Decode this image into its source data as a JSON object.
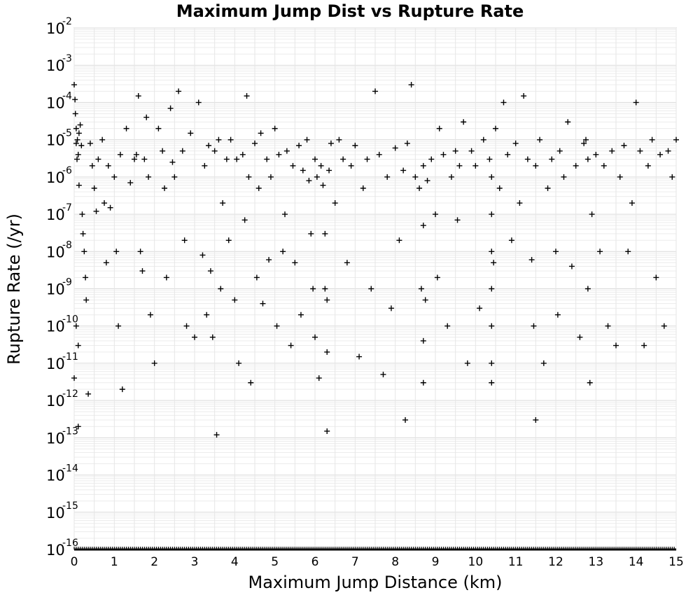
{
  "chart_data": {
    "type": "scatter",
    "title": "Maximum Jump Dist vs Rupture Rate",
    "xlabel": "Maximum Jump Distance (km)",
    "ylabel": "Rupture Rate (/yr)",
    "xlim": [
      0,
      15
    ],
    "ylim": [
      1e-16,
      0.01
    ],
    "y_scale": "log",
    "grid": true,
    "legend": "none",
    "marker": "+",
    "marker_color": "#000000",
    "x_ticks": [
      "0",
      "1",
      "2",
      "3",
      "4",
      "5",
      "6",
      "7",
      "8",
      "9",
      "10",
      "11",
      "12",
      "13",
      "14",
      "15"
    ],
    "y_ticks": [
      {
        "base": "10",
        "exp": "-2"
      },
      {
        "base": "10",
        "exp": "-3"
      },
      {
        "base": "10",
        "exp": "-4"
      },
      {
        "base": "10",
        "exp": "-5"
      },
      {
        "base": "10",
        "exp": "-6"
      },
      {
        "base": "10",
        "exp": "-7"
      },
      {
        "base": "10",
        "exp": "-8"
      },
      {
        "base": "10",
        "exp": "-9"
      },
      {
        "base": "10",
        "exp": "-10"
      },
      {
        "base": "10",
        "exp": "-11"
      },
      {
        "base": "10",
        "exp": "-12"
      },
      {
        "base": "10",
        "exp": "-13"
      },
      {
        "base": "10",
        "exp": "-14"
      },
      {
        "base": "10",
        "exp": "-15"
      },
      {
        "base": "10",
        "exp": "-16"
      }
    ],
    "points": [
      [
        0.0,
        0.0003
      ],
      [
        0.02,
        0.00012
      ],
      [
        0.03,
        5e-05
      ],
      [
        0.05,
        2e-05
      ],
      [
        0.05,
        8e-06
      ],
      [
        0.07,
        3e-06
      ],
      [
        0.08,
        1e-05
      ],
      [
        0.1,
        4e-06
      ],
      [
        0.12,
        1.5e-05
      ],
      [
        0.12,
        6e-07
      ],
      [
        0.15,
        2.5e-05
      ],
      [
        0.18,
        7e-06
      ],
      [
        0.2,
        1e-07
      ],
      [
        0.22,
        3e-08
      ],
      [
        0.25,
        1e-08
      ],
      [
        0.28,
        2e-09
      ],
      [
        0.3,
        5e-10
      ],
      [
        0.05,
        1e-10
      ],
      [
        0.1,
        3e-11
      ],
      [
        0.0,
        4e-12
      ],
      [
        0.1,
        2e-13
      ],
      [
        0.35,
        1.5e-12
      ],
      [
        0.4,
        8e-06
      ],
      [
        0.45,
        2e-06
      ],
      [
        0.5,
        5e-07
      ],
      [
        0.55,
        1.2e-07
      ],
      [
        0.6,
        3e-06
      ],
      [
        0.7,
        1e-05
      ],
      [
        0.75,
        2e-07
      ],
      [
        0.8,
        5e-09
      ],
      [
        0.85,
        2e-06
      ],
      [
        0.9,
        1.5e-07
      ],
      [
        1.0,
        1e-06
      ],
      [
        1.05,
        1e-08
      ],
      [
        1.1,
        1e-10
      ],
      [
        1.15,
        4e-06
      ],
      [
        1.2,
        2e-12
      ],
      [
        1.3,
        2e-05
      ],
      [
        1.4,
        7e-07
      ],
      [
        1.5,
        3e-06
      ],
      [
        1.55,
        4e-06
      ],
      [
        1.6,
        0.00015
      ],
      [
        1.65,
        1e-08
      ],
      [
        1.7,
        3e-09
      ],
      [
        1.75,
        3e-06
      ],
      [
        1.8,
        4e-05
      ],
      [
        1.85,
        1e-06
      ],
      [
        1.9,
        2e-10
      ],
      [
        2.0,
        1e-11
      ],
      [
        2.1,
        2e-05
      ],
      [
        2.2,
        5e-06
      ],
      [
        2.25,
        5e-07
      ],
      [
        2.3,
        2e-09
      ],
      [
        2.4,
        7e-05
      ],
      [
        2.45,
        2.5e-06
      ],
      [
        2.5,
        1e-06
      ],
      [
        2.6,
        0.0002
      ],
      [
        2.7,
        5e-06
      ],
      [
        2.75,
        2e-08
      ],
      [
        2.8,
        1e-10
      ],
      [
        2.9,
        1.5e-05
      ],
      [
        3.0,
        5e-11
      ],
      [
        3.1,
        0.0001
      ],
      [
        3.2,
        8e-09
      ],
      [
        3.25,
        2e-06
      ],
      [
        3.3,
        2e-10
      ],
      [
        3.35,
        7e-06
      ],
      [
        3.4,
        3e-09
      ],
      [
        3.45,
        5e-11
      ],
      [
        3.5,
        5e-06
      ],
      [
        3.55,
        1.2e-13
      ],
      [
        3.6,
        1e-05
      ],
      [
        3.65,
        1e-09
      ],
      [
        3.7,
        2e-07
      ],
      [
        3.8,
        3e-06
      ],
      [
        3.85,
        2e-08
      ],
      [
        3.9,
        1e-05
      ],
      [
        4.0,
        5e-10
      ],
      [
        4.05,
        3e-06
      ],
      [
        4.1,
        1e-11
      ],
      [
        4.2,
        4e-06
      ],
      [
        4.25,
        7e-08
      ],
      [
        4.3,
        0.00015
      ],
      [
        4.35,
        1e-06
      ],
      [
        4.4,
        3e-12
      ],
      [
        4.5,
        8e-06
      ],
      [
        4.55,
        2e-09
      ],
      [
        4.6,
        5e-07
      ],
      [
        4.65,
        1.5e-05
      ],
      [
        4.7,
        4e-10
      ],
      [
        4.8,
        3e-06
      ],
      [
        4.85,
        6e-09
      ],
      [
        4.9,
        1e-06
      ],
      [
        5.0,
        2e-05
      ],
      [
        5.05,
        1e-10
      ],
      [
        5.1,
        4e-06
      ],
      [
        5.2,
        1e-08
      ],
      [
        5.25,
        1e-07
      ],
      [
        5.3,
        5e-06
      ],
      [
        5.4,
        3e-11
      ],
      [
        5.45,
        2e-06
      ],
      [
        5.5,
        5e-09
      ],
      [
        5.6,
        7e-06
      ],
      [
        5.65,
        2e-10
      ],
      [
        5.7,
        1.5e-06
      ],
      [
        5.8,
        1e-05
      ],
      [
        5.85,
        8e-07
      ],
      [
        5.9,
        3e-08
      ],
      [
        5.95,
        1e-09
      ],
      [
        6.0,
        3e-06
      ],
      [
        6.0,
        5e-11
      ],
      [
        6.05,
        1e-06
      ],
      [
        6.1,
        4e-12
      ],
      [
        6.15,
        2e-06
      ],
      [
        6.2,
        6e-07
      ],
      [
        6.25,
        3e-08
      ],
      [
        6.25,
        1e-09
      ],
      [
        6.3,
        5e-10
      ],
      [
        6.3,
        2e-11
      ],
      [
        6.3,
        1.5e-13
      ],
      [
        6.35,
        1.5e-06
      ],
      [
        6.4,
        8e-06
      ],
      [
        6.5,
        2e-07
      ],
      [
        6.6,
        1e-05
      ],
      [
        6.7,
        3e-06
      ],
      [
        6.8,
        5e-09
      ],
      [
        6.9,
        2e-06
      ],
      [
        7.0,
        7e-06
      ],
      [
        7.1,
        1.5e-11
      ],
      [
        7.2,
        5e-07
      ],
      [
        7.3,
        3e-06
      ],
      [
        7.4,
        1e-09
      ],
      [
        7.5,
        0.0002
      ],
      [
        7.6,
        4e-06
      ],
      [
        7.7,
        5e-12
      ],
      [
        7.8,
        1e-06
      ],
      [
        7.9,
        3e-10
      ],
      [
        8.0,
        6e-06
      ],
      [
        8.1,
        2e-08
      ],
      [
        8.2,
        1.5e-06
      ],
      [
        8.25,
        3e-13
      ],
      [
        8.3,
        8e-06
      ],
      [
        8.4,
        0.0003
      ],
      [
        8.5,
        1e-06
      ],
      [
        8.6,
        5e-07
      ],
      [
        8.65,
        1e-09
      ],
      [
        8.7,
        2e-06
      ],
      [
        8.7,
        5e-08
      ],
      [
        8.7,
        4e-11
      ],
      [
        8.7,
        3e-12
      ],
      [
        8.75,
        5e-10
      ],
      [
        8.8,
        8e-07
      ],
      [
        8.9,
        3e-06
      ],
      [
        9.0,
        1e-07
      ],
      [
        9.05,
        2e-09
      ],
      [
        9.1,
        2e-05
      ],
      [
        9.2,
        4e-06
      ],
      [
        9.3,
        1e-10
      ],
      [
        9.4,
        1e-06
      ],
      [
        9.5,
        5e-06
      ],
      [
        9.55,
        7e-08
      ],
      [
        9.6,
        2e-06
      ],
      [
        9.7,
        3e-05
      ],
      [
        9.8,
        1e-11
      ],
      [
        9.9,
        5e-06
      ],
      [
        10.0,
        2e-06
      ],
      [
        10.1,
        3e-10
      ],
      [
        10.2,
        1e-05
      ],
      [
        10.35,
        3e-06
      ],
      [
        10.4,
        1e-06
      ],
      [
        10.4,
        1e-07
      ],
      [
        10.4,
        1e-08
      ],
      [
        10.4,
        1e-09
      ],
      [
        10.4,
        1e-10
      ],
      [
        10.4,
        1e-11
      ],
      [
        10.4,
        3e-12
      ],
      [
        10.45,
        5e-09
      ],
      [
        10.5,
        2e-05
      ],
      [
        10.6,
        5e-07
      ],
      [
        10.7,
        0.0001
      ],
      [
        10.8,
        4e-06
      ],
      [
        10.9,
        2e-08
      ],
      [
        11.0,
        8e-06
      ],
      [
        11.1,
        2e-07
      ],
      [
        11.2,
        0.00015
      ],
      [
        11.3,
        3e-06
      ],
      [
        11.4,
        6e-09
      ],
      [
        11.45,
        1e-10
      ],
      [
        11.5,
        2e-06
      ],
      [
        11.5,
        3e-13
      ],
      [
        11.6,
        1e-05
      ],
      [
        11.7,
        1e-11
      ],
      [
        11.8,
        5e-07
      ],
      [
        11.9,
        3e-06
      ],
      [
        12.0,
        1e-08
      ],
      [
        12.05,
        2e-10
      ],
      [
        12.1,
        5e-06
      ],
      [
        12.2,
        1e-06
      ],
      [
        12.3,
        3e-05
      ],
      [
        12.4,
        4e-09
      ],
      [
        12.5,
        2e-06
      ],
      [
        12.6,
        5e-11
      ],
      [
        12.7,
        8e-06
      ],
      [
        12.75,
        1e-05
      ],
      [
        12.8,
        3e-06
      ],
      [
        12.8,
        1e-09
      ],
      [
        12.85,
        3e-12
      ],
      [
        12.9,
        1e-07
      ],
      [
        13.0,
        4e-06
      ],
      [
        13.1,
        1e-08
      ],
      [
        13.2,
        2e-06
      ],
      [
        13.3,
        1e-10
      ],
      [
        13.4,
        5e-06
      ],
      [
        13.5,
        3e-11
      ],
      [
        13.6,
        1e-06
      ],
      [
        13.7,
        7e-06
      ],
      [
        13.8,
        1e-08
      ],
      [
        13.9,
        2e-07
      ],
      [
        14.0,
        0.0001
      ],
      [
        14.1,
        5e-06
      ],
      [
        14.2,
        3e-11
      ],
      [
        14.3,
        2e-06
      ],
      [
        14.4,
        1e-05
      ],
      [
        14.5,
        2e-09
      ],
      [
        14.6,
        4e-06
      ],
      [
        14.7,
        1e-10
      ],
      [
        14.8,
        5e-06
      ],
      [
        14.9,
        1e-06
      ],
      [
        15.0,
        1e-05
      ]
    ]
  }
}
